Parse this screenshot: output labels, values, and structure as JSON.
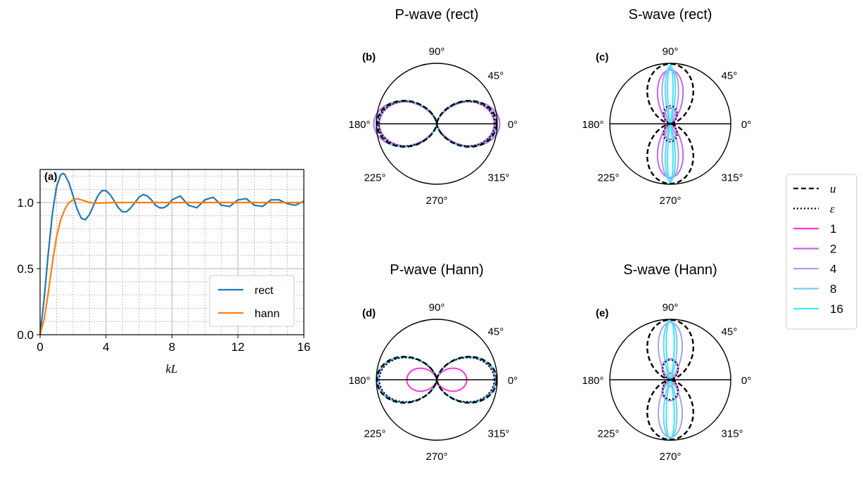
{
  "colors": {
    "rect": "#1f77b4",
    "hann": "#ff7f0e",
    "n1": "#ff33dd",
    "n2": "#c266ee",
    "n4": "#a3a3f2",
    "n8": "#7cc9f5",
    "n16": "#33eef2",
    "u": "#000000",
    "eps": "#000000"
  },
  "legend": {
    "entries": [
      {
        "label": "u",
        "style": "dashed",
        "color": "#000000",
        "math": true
      },
      {
        "label": "ε",
        "style": "dotted",
        "color": "#000000",
        "math": true
      },
      {
        "label": "1",
        "style": "solid",
        "color": "#ff33dd"
      },
      {
        "label": "2",
        "style": "solid",
        "color": "#c266ee"
      },
      {
        "label": "4",
        "style": "solid",
        "color": "#a3a3f2"
      },
      {
        "label": "8",
        "style": "solid",
        "color": "#7cc9f5"
      },
      {
        "label": "16",
        "style": "solid",
        "color": "#33eef2"
      }
    ]
  },
  "chart_data": [
    {
      "id": "a",
      "panel_label": "(a)",
      "type": "line",
      "title": "",
      "xlabel": "kL",
      "ylabel": "",
      "xlim": [
        0,
        16
      ],
      "ylim": [
        0,
        1.25
      ],
      "xticks": [
        0,
        4,
        8,
        12,
        16
      ],
      "xtick_labels": [
        "0",
        "4",
        "8",
        "12",
        "16"
      ],
      "yticks": [
        0,
        0.5,
        1.0
      ],
      "ytick_labels": [
        "0.0",
        "0.5",
        "1.0"
      ],
      "grid": "major and minor",
      "legend_position": "lower-right",
      "series": [
        {
          "name": "rect",
          "x": [
            0,
            0.25,
            0.5,
            0.75,
            1.0,
            1.25,
            1.4,
            1.5,
            1.75,
            2.0,
            2.25,
            2.5,
            2.75,
            3.0,
            3.25,
            3.5,
            3.75,
            4.0,
            4.25,
            4.5,
            4.75,
            5.0,
            5.25,
            5.5,
            5.75,
            6.0,
            6.25,
            6.5,
            6.75,
            7.0,
            7.25,
            7.5,
            7.75,
            8.0,
            8.5,
            9.0,
            9.5,
            10.0,
            10.5,
            11.0,
            11.5,
            12.0,
            12.5,
            13.0,
            13.5,
            14.0,
            14.5,
            15.0,
            15.5,
            16.0
          ],
          "y": [
            0,
            0.28,
            0.62,
            0.92,
            1.12,
            1.21,
            1.22,
            1.21,
            1.15,
            1.05,
            0.95,
            0.88,
            0.87,
            0.91,
            0.98,
            1.05,
            1.09,
            1.09,
            1.06,
            1.01,
            0.96,
            0.93,
            0.93,
            0.96,
            1.0,
            1.04,
            1.06,
            1.05,
            1.02,
            0.98,
            0.96,
            0.96,
            0.98,
            1.02,
            1.05,
            0.98,
            0.96,
            1.02,
            1.04,
            0.98,
            0.97,
            1.02,
            1.03,
            0.98,
            0.97,
            1.02,
            1.02,
            0.99,
            0.98,
            1.01
          ]
        },
        {
          "name": "hann",
          "x": [
            0,
            0.25,
            0.5,
            0.75,
            1.0,
            1.25,
            1.5,
            1.75,
            2.0,
            2.25,
            2.5,
            2.75,
            3.0,
            3.5,
            4.0,
            4.5,
            5.0,
            6.0,
            8.0,
            10.0,
            12.0,
            14.0,
            16.0
          ],
          "y": [
            0,
            0.12,
            0.32,
            0.55,
            0.74,
            0.87,
            0.95,
            1.0,
            1.02,
            1.03,
            1.02,
            1.01,
            1.0,
            0.995,
            0.998,
            1.0,
            1.0,
            1.0,
            1.0,
            1.0,
            1.0,
            1.0,
            1.0
          ]
        }
      ]
    },
    {
      "id": "b",
      "panel_label": "(b)",
      "type": "polar",
      "title": "P-wave (rect)",
      "angle_labels": [
        "0°",
        "45°",
        "90°",
        "180°",
        "225°",
        "270°",
        "315°"
      ],
      "rmax": 1.0,
      "curves": [
        {
          "key": "n1",
          "shape": "cos2",
          "amp": 0.96,
          "power": 1
        },
        {
          "key": "n2",
          "shape": "cos2",
          "amp": 1.05,
          "power": 1.2
        },
        {
          "key": "n4",
          "shape": "cos2",
          "amp": 0.98,
          "power": 1
        },
        {
          "key": "n8",
          "shape": "cos2",
          "amp": 0.99,
          "power": 1
        },
        {
          "key": "n16",
          "shape": "cos2",
          "amp": 1.0,
          "power": 1
        },
        {
          "key": "eps",
          "shape": "cos2",
          "amp": 0.97,
          "power": 1
        },
        {
          "key": "u",
          "shape": "cos2",
          "amp": 1.0,
          "power": 1
        }
      ]
    },
    {
      "id": "c",
      "panel_label": "(c)",
      "type": "polar",
      "title": "S-wave (rect)",
      "angle_labels": [
        "0°",
        "45°",
        "90°",
        "180°",
        "225°",
        "270°",
        "315°"
      ],
      "rmax": 1.0,
      "curves": [
        {
          "key": "n1",
          "shape": "sin2",
          "amp": 0.26,
          "power": 1
        },
        {
          "key": "n2",
          "shape": "lobe",
          "amp": 0.9,
          "power": 3
        },
        {
          "key": "n4",
          "shape": "lobe",
          "amp": 0.92,
          "power": 8
        },
        {
          "key": "n8",
          "shape": "lobe",
          "amp": 0.96,
          "power": 24
        },
        {
          "key": "n16",
          "shape": "lobe",
          "amp": 0.98,
          "power": 80
        },
        {
          "key": "eps",
          "shape": "sin2",
          "amp": 0.3,
          "power": 1
        },
        {
          "key": "u",
          "shape": "sin2",
          "amp": 1.0,
          "power": 1
        }
      ]
    },
    {
      "id": "d",
      "panel_label": "(d)",
      "type": "polar",
      "title": "P-wave (Hann)",
      "angle_labels": [
        "0°",
        "45°",
        "90°",
        "180°",
        "225°",
        "270°",
        "315°"
      ],
      "rmax": 1.0,
      "curves": [
        {
          "key": "n1",
          "shape": "cos2",
          "amp": 0.5,
          "power": 1
        },
        {
          "key": "n2",
          "shape": "cos2",
          "amp": 0.97,
          "power": 1
        },
        {
          "key": "n4",
          "shape": "cos2",
          "amp": 0.98,
          "power": 1
        },
        {
          "key": "n8",
          "shape": "cos2",
          "amp": 0.99,
          "power": 1
        },
        {
          "key": "n16",
          "shape": "cos2",
          "amp": 1.0,
          "power": 1
        },
        {
          "key": "eps",
          "shape": "cos2",
          "amp": 0.96,
          "power": 1
        },
        {
          "key": "u",
          "shape": "cos2",
          "amp": 1.0,
          "power": 1
        }
      ]
    },
    {
      "id": "e",
      "panel_label": "(e)",
      "type": "polar",
      "title": "S-wave (Hann)",
      "angle_labels": [
        "0°",
        "45°",
        "90°",
        "180°",
        "225°",
        "270°",
        "315°"
      ],
      "rmax": 1.0,
      "curves": [
        {
          "key": "n1",
          "shape": "sin2",
          "amp": 0.11,
          "power": 1
        },
        {
          "key": "n2",
          "shape": "sin2",
          "amp": 0.35,
          "power": 1
        },
        {
          "key": "n4",
          "shape": "lobe",
          "amp": 0.96,
          "power": 4
        },
        {
          "key": "n8",
          "shape": "lobe",
          "amp": 0.98,
          "power": 14
        },
        {
          "key": "n16",
          "shape": "lobe",
          "amp": 1.0,
          "power": 40
        },
        {
          "key": "eps",
          "shape": "sin2",
          "amp": 0.33,
          "power": 1
        },
        {
          "key": "u",
          "shape": "sin2",
          "amp": 1.0,
          "power": 1
        }
      ]
    }
  ]
}
